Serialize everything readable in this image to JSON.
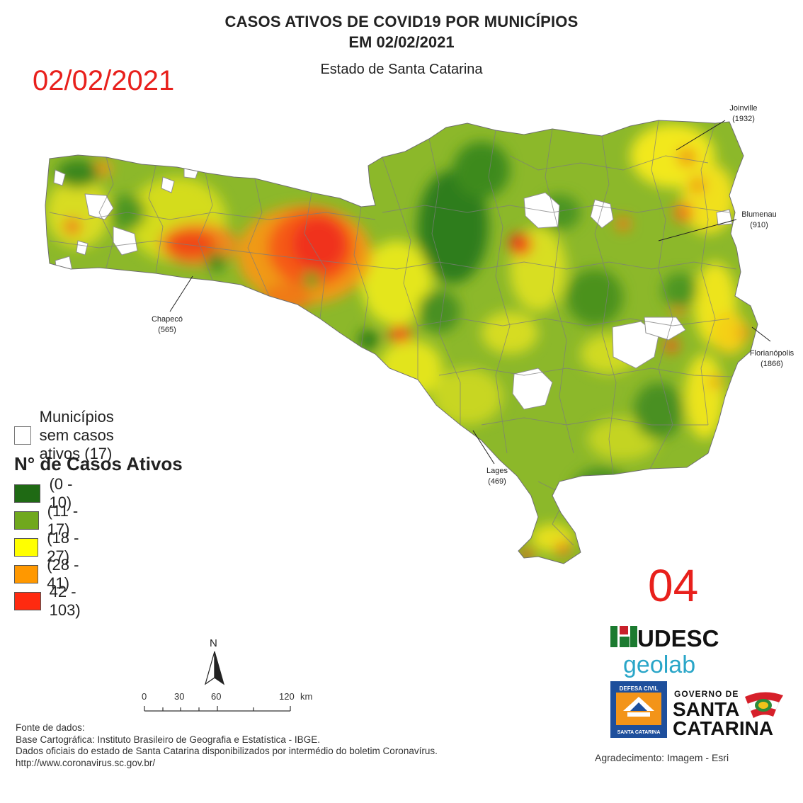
{
  "header": {
    "title_line1": "CASOS ATIVOS DE COVID19 POR MUNICÍPIOS",
    "title_line2": "EM 02/02/2021",
    "subtitle": "Estado de Santa Catarina",
    "date_stamp": "02/02/2021",
    "page_number": "04"
  },
  "cities": [
    {
      "name": "Joinville",
      "count": "(1932)"
    },
    {
      "name": "Blumenau",
      "count": "(910)"
    },
    {
      "name": "Chapecó",
      "count": "(565)"
    },
    {
      "name": "Florianópolis",
      "count": "(1866)"
    },
    {
      "name": "Lages",
      "count": "(469)"
    }
  ],
  "legend": {
    "no_cases_label": "Municípios sem casos ativos (17)",
    "title": "N° de Casos Ativos",
    "classes": [
      {
        "label": "(0 - 10)",
        "color": "#1f6a14"
      },
      {
        "label": "(11 - 17)",
        "color": "#70a81e"
      },
      {
        "label": "(18 - 27)",
        "color": "#ffff00"
      },
      {
        "label": "(28 - 41)",
        "color": "#ff9800"
      },
      {
        "label": "42 - 103)",
        "color": "#ff2a10"
      }
    ]
  },
  "north_label": "N",
  "scale": {
    "ticks": [
      "0",
      "30",
      "60",
      "120"
    ],
    "unit": "km"
  },
  "sources": [
    "Fonte de dados:",
    "Base Cartográfica: Instituto Brasileiro de Geografia e Estatística - IBGE.",
    "Dados oficiais do estado de Santa Catarina disponibilizados por intermédio do boletim Coronavírus.",
    "http://www.coronavirus.sc.gov.br/"
  ],
  "credit": "Agradecimento: Imagem - Esri",
  "logos": {
    "udesc": "UDESC",
    "geolab": "geolab",
    "defesa_top": "DEFESA CIVIL",
    "defesa_bottom": "SANTA CATARINA",
    "gov_line1": "GOVERNO DE",
    "gov_line2": "SANTA",
    "gov_line3": "CATARINA"
  }
}
